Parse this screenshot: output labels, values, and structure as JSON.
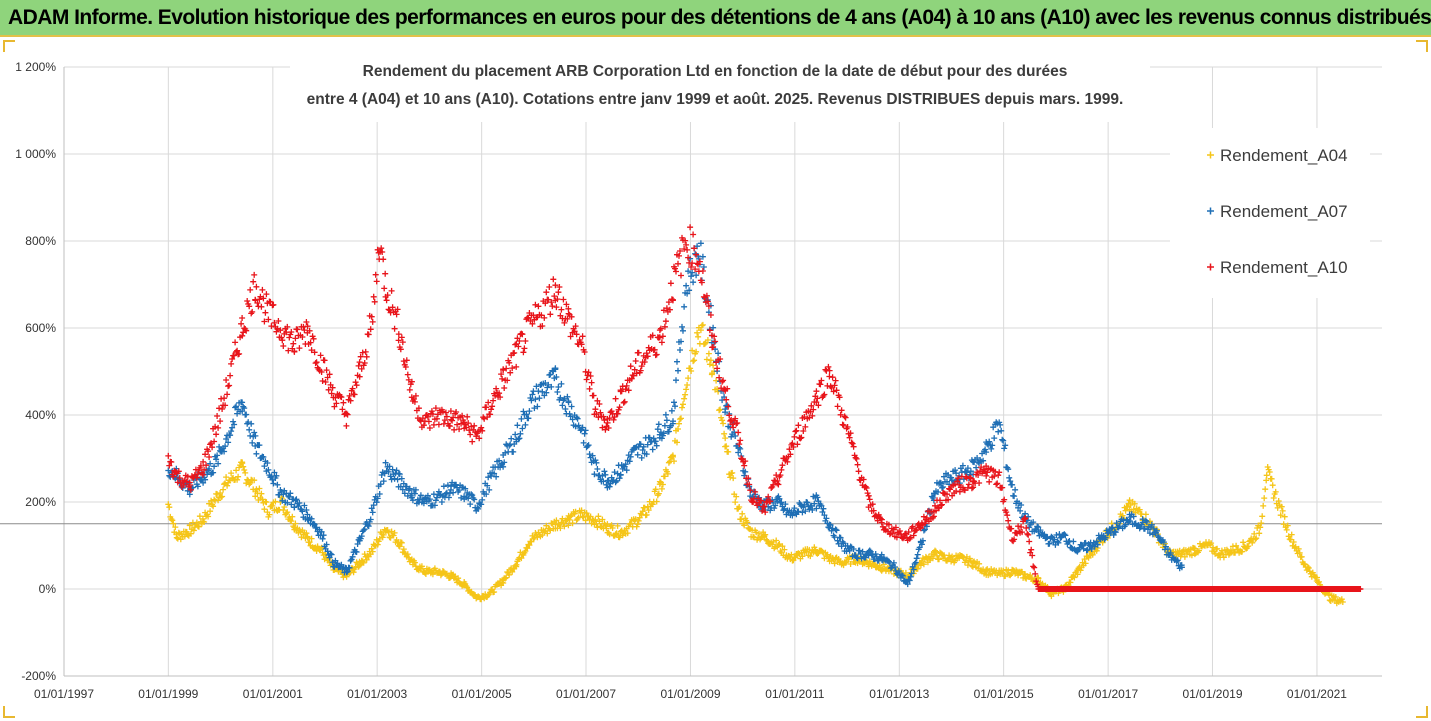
{
  "banner": {
    "title": "ADAM Informe. Evolution historique des performances en euros pour des détentions de 4 ans (A04) à 10 ans (A10) avec les revenus connus distribués"
  },
  "colors": {
    "banner_bg": "#8fd47c",
    "a04": "#f5c518",
    "a07": "#1f6fb5",
    "a10": "#e8151b",
    "grid": "#d9d9d9"
  },
  "chart_data": {
    "type": "scatter",
    "title_lines": [
      "Rendement du placement ARB Corporation Ltd en fonction de la date de début pour des durées",
      "entre 4 (A04) et 10 ans (A10). Cotations entre janv 1999 et août. 2025. Revenus DISTRIBUES depuis mars. 1999."
    ],
    "xlabel": "",
    "ylabel": "",
    "x_axis": {
      "type": "date",
      "range": [
        "1997-01-01",
        "2022-04-01"
      ],
      "tick_labels": [
        "01/01/1997",
        "01/01/1999",
        "01/01/2001",
        "01/01/2003",
        "01/01/2005",
        "01/01/2007",
        "01/01/2009",
        "01/01/2011",
        "01/01/2013",
        "01/01/2015",
        "01/01/2017",
        "01/01/2019",
        "01/01/2021"
      ],
      "tick_dates": [
        "1997-01-01",
        "1999-01-01",
        "2001-01-01",
        "2003-01-01",
        "2005-01-01",
        "2007-01-01",
        "2009-01-01",
        "2011-01-01",
        "2013-01-01",
        "2015-01-01",
        "2017-01-01",
        "2019-01-01",
        "2021-01-01"
      ]
    },
    "y_axis": {
      "unit": "%",
      "range": [
        -200,
        1200
      ],
      "tick_values": [
        -200,
        0,
        200,
        400,
        600,
        800,
        1000,
        1200
      ],
      "tick_labels": [
        "-200%",
        "0%",
        "200%",
        "400%",
        "600%",
        "800%",
        "1 000%",
        "1 200%"
      ]
    },
    "grid": true,
    "legend_position": "top-right",
    "marker": "+",
    "series": [
      {
        "name": "Rendement_A04",
        "color": "#f5c518",
        "points": [
          [
            "1999-01-01",
            195
          ],
          [
            "1999-03-01",
            120
          ],
          [
            "1999-06-01",
            135
          ],
          [
            "1999-09-01",
            160
          ],
          [
            "1999-12-01",
            210
          ],
          [
            "2000-03-01",
            250
          ],
          [
            "2000-06-01",
            275
          ],
          [
            "2000-09-01",
            230
          ],
          [
            "2000-12-01",
            180
          ],
          [
            "2001-03-01",
            200
          ],
          [
            "2001-06-01",
            150
          ],
          [
            "2001-09-01",
            115
          ],
          [
            "2001-12-01",
            90
          ],
          [
            "2002-03-01",
            45
          ],
          [
            "2002-06-01",
            30
          ],
          [
            "2002-09-01",
            60
          ],
          [
            "2002-12-01",
            90
          ],
          [
            "2003-03-01",
            140
          ],
          [
            "2003-06-01",
            110
          ],
          [
            "2003-09-01",
            60
          ],
          [
            "2003-12-01",
            40
          ],
          [
            "2004-03-01",
            40
          ],
          [
            "2004-06-01",
            30
          ],
          [
            "2004-09-01",
            10
          ],
          [
            "2004-12-01",
            -20
          ],
          [
            "2005-03-01",
            -10
          ],
          [
            "2005-06-01",
            20
          ],
          [
            "2005-09-01",
            60
          ],
          [
            "2005-12-01",
            110
          ],
          [
            "2006-03-01",
            130
          ],
          [
            "2006-06-01",
            150
          ],
          [
            "2006-09-01",
            160
          ],
          [
            "2006-12-01",
            170
          ],
          [
            "2007-03-01",
            160
          ],
          [
            "2007-06-01",
            140
          ],
          [
            "2007-09-01",
            130
          ],
          [
            "2007-12-01",
            150
          ],
          [
            "2008-03-01",
            180
          ],
          [
            "2008-06-01",
            230
          ],
          [
            "2008-09-01",
            300
          ],
          [
            "2008-12-01",
            480
          ],
          [
            "2009-03-01",
            600
          ],
          [
            "2009-06-01",
            520
          ],
          [
            "2009-09-01",
            330
          ],
          [
            "2009-12-01",
            180
          ],
          [
            "2010-03-01",
            130
          ],
          [
            "2010-06-01",
            120
          ],
          [
            "2010-09-01",
            100
          ],
          [
            "2010-12-01",
            70
          ],
          [
            "2011-03-01",
            80
          ],
          [
            "2011-06-01",
            90
          ],
          [
            "2011-09-01",
            70
          ],
          [
            "2011-12-01",
            60
          ],
          [
            "2012-03-01",
            70
          ],
          [
            "2012-06-01",
            60
          ],
          [
            "2012-09-01",
            50
          ],
          [
            "2012-12-01",
            40
          ],
          [
            "2013-03-01",
            30
          ],
          [
            "2013-06-01",
            60
          ],
          [
            "2013-09-01",
            80
          ],
          [
            "2013-12-01",
            70
          ],
          [
            "2014-03-01",
            70
          ],
          [
            "2014-06-01",
            60
          ],
          [
            "2014-09-01",
            40
          ],
          [
            "2014-12-01",
            35
          ],
          [
            "2015-03-01",
            40
          ],
          [
            "2015-06-01",
            30
          ],
          [
            "2015-09-01",
            20
          ],
          [
            "2015-12-01",
            -10
          ],
          [
            "2016-03-01",
            0
          ],
          [
            "2016-06-01",
            40
          ],
          [
            "2016-09-01",
            80
          ],
          [
            "2016-12-01",
            120
          ],
          [
            "2017-03-01",
            150
          ],
          [
            "2017-06-01",
            190
          ],
          [
            "2017-09-01",
            170
          ],
          [
            "2017-12-01",
            130
          ],
          [
            "2018-03-01",
            80
          ],
          [
            "2018-06-01",
            80
          ],
          [
            "2018-09-01",
            90
          ],
          [
            "2018-12-01",
            100
          ],
          [
            "2019-03-01",
            80
          ],
          [
            "2019-06-01",
            90
          ],
          [
            "2019-09-01",
            100
          ],
          [
            "2019-12-01",
            140
          ],
          [
            "2020-01-15",
            270
          ],
          [
            "2020-04-01",
            200
          ],
          [
            "2020-07-01",
            120
          ],
          [
            "2020-10-01",
            60
          ],
          [
            "2021-01-01",
            20
          ],
          [
            "2021-04-01",
            -20
          ],
          [
            "2021-07-01",
            -30
          ]
        ]
      },
      {
        "name": "Rendement_A07",
        "color": "#1f6fb5",
        "points": [
          [
            "1999-01-01",
            280
          ],
          [
            "1999-03-01",
            260
          ],
          [
            "1999-06-01",
            230
          ],
          [
            "1999-09-01",
            260
          ],
          [
            "1999-12-01",
            290
          ],
          [
            "2000-03-01",
            360
          ],
          [
            "2000-06-01",
            430
          ],
          [
            "2000-09-01",
            330
          ],
          [
            "2000-12-01",
            280
          ],
          [
            "2001-03-01",
            220
          ],
          [
            "2001-06-01",
            200
          ],
          [
            "2001-09-01",
            170
          ],
          [
            "2001-12-01",
            130
          ],
          [
            "2002-03-01",
            60
          ],
          [
            "2002-06-01",
            40
          ],
          [
            "2002-09-01",
            110
          ],
          [
            "2002-12-01",
            180
          ],
          [
            "2003-03-01",
            280
          ],
          [
            "2003-06-01",
            250
          ],
          [
            "2003-09-01",
            220
          ],
          [
            "2003-12-01",
            200
          ],
          [
            "2004-03-01",
            210
          ],
          [
            "2004-06-01",
            230
          ],
          [
            "2004-09-01",
            220
          ],
          [
            "2004-12-01",
            190
          ],
          [
            "2005-03-01",
            250
          ],
          [
            "2005-06-01",
            300
          ],
          [
            "2005-09-01",
            350
          ],
          [
            "2005-12-01",
            420
          ],
          [
            "2006-03-01",
            460
          ],
          [
            "2006-06-01",
            480
          ],
          [
            "2006-09-01",
            420
          ],
          [
            "2006-12-01",
            370
          ],
          [
            "2007-03-01",
            280
          ],
          [
            "2007-06-01",
            250
          ],
          [
            "2007-09-01",
            270
          ],
          [
            "2007-12-01",
            310
          ],
          [
            "2008-03-01",
            330
          ],
          [
            "2008-06-01",
            360
          ],
          [
            "2008-09-01",
            400
          ],
          [
            "2008-12-01",
            700
          ],
          [
            "2009-03-01",
            780
          ],
          [
            "2009-06-01",
            600
          ],
          [
            "2009-09-01",
            420
          ],
          [
            "2009-12-01",
            320
          ],
          [
            "2010-03-01",
            220
          ],
          [
            "2010-06-01",
            190
          ],
          [
            "2010-09-01",
            200
          ],
          [
            "2010-12-01",
            170
          ],
          [
            "2011-03-01",
            190
          ],
          [
            "2011-06-01",
            200
          ],
          [
            "2011-09-01",
            150
          ],
          [
            "2011-12-01",
            100
          ],
          [
            "2012-03-01",
            80
          ],
          [
            "2012-06-01",
            80
          ],
          [
            "2012-09-01",
            70
          ],
          [
            "2012-12-01",
            50
          ],
          [
            "2013-03-01",
            10
          ],
          [
            "2013-06-01",
            100
          ],
          [
            "2013-09-01",
            220
          ],
          [
            "2013-12-01",
            250
          ],
          [
            "2014-03-01",
            260
          ],
          [
            "2014-06-01",
            280
          ],
          [
            "2014-09-01",
            320
          ],
          [
            "2014-12-01",
            380
          ],
          [
            "2015-03-01",
            230
          ],
          [
            "2015-06-01",
            160
          ],
          [
            "2015-09-01",
            130
          ],
          [
            "2015-12-01",
            110
          ],
          [
            "2016-03-01",
            120
          ],
          [
            "2016-06-01",
            90
          ],
          [
            "2016-09-01",
            100
          ],
          [
            "2016-12-01",
            120
          ],
          [
            "2017-03-01",
            140
          ],
          [
            "2017-06-01",
            160
          ],
          [
            "2017-09-01",
            150
          ],
          [
            "2017-12-01",
            130
          ],
          [
            "2018-03-01",
            80
          ],
          [
            "2018-06-01",
            50
          ]
        ]
      },
      {
        "name": "Rendement_A10",
        "color": "#e8151b",
        "points": [
          [
            "1999-01-01",
            300
          ],
          [
            "1999-03-01",
            260
          ],
          [
            "1999-06-01",
            240
          ],
          [
            "1999-09-01",
            280
          ],
          [
            "1999-12-01",
            370
          ],
          [
            "2000-03-01",
            480
          ],
          [
            "2000-06-01",
            600
          ],
          [
            "2000-09-01",
            700
          ],
          [
            "2000-12-01",
            630
          ],
          [
            "2001-03-01",
            600
          ],
          [
            "2001-06-01",
            560
          ],
          [
            "2001-09-01",
            600
          ],
          [
            "2001-12-01",
            520
          ],
          [
            "2002-03-01",
            450
          ],
          [
            "2002-06-01",
            400
          ],
          [
            "2002-09-01",
            500
          ],
          [
            "2002-12-01",
            620
          ],
          [
            "2003-01-15",
            800
          ],
          [
            "2003-03-01",
            700
          ],
          [
            "2003-06-01",
            600
          ],
          [
            "2003-09-01",
            450
          ],
          [
            "2003-12-01",
            380
          ],
          [
            "2004-03-01",
            400
          ],
          [
            "2004-06-01",
            390
          ],
          [
            "2004-09-01",
            380
          ],
          [
            "2004-12-01",
            350
          ],
          [
            "2005-03-01",
            420
          ],
          [
            "2005-06-01",
            480
          ],
          [
            "2005-09-01",
            540
          ],
          [
            "2005-12-01",
            600
          ],
          [
            "2006-03-01",
            640
          ],
          [
            "2006-06-01",
            690
          ],
          [
            "2006-09-01",
            620
          ],
          [
            "2006-12-01",
            560
          ],
          [
            "2007-03-01",
            420
          ],
          [
            "2007-06-01",
            380
          ],
          [
            "2007-09-01",
            440
          ],
          [
            "2007-12-01",
            500
          ],
          [
            "2008-03-01",
            540
          ],
          [
            "2008-06-01",
            580
          ],
          [
            "2008-09-01",
            700
          ],
          [
            "2008-12-01",
            800
          ],
          [
            "2009-03-01",
            760
          ],
          [
            "2009-06-01",
            580
          ],
          [
            "2009-09-01",
            450
          ],
          [
            "2009-12-01",
            350
          ],
          [
            "2010-03-01",
            220
          ],
          [
            "2010-06-01",
            180
          ],
          [
            "2010-09-01",
            250
          ],
          [
            "2010-12-01",
            320
          ],
          [
            "2011-03-01",
            380
          ],
          [
            "2011-06-01",
            440
          ],
          [
            "2011-09-01",
            500
          ],
          [
            "2011-12-01",
            400
          ],
          [
            "2012-03-01",
            300
          ],
          [
            "2012-06-01",
            200
          ],
          [
            "2012-09-01",
            150
          ],
          [
            "2012-12-01",
            130
          ],
          [
            "2013-03-01",
            120
          ],
          [
            "2013-06-01",
            150
          ],
          [
            "2013-09-01",
            180
          ],
          [
            "2013-12-01",
            220
          ],
          [
            "2014-03-01",
            240
          ],
          [
            "2014-06-01",
            250
          ],
          [
            "2014-09-01",
            270
          ],
          [
            "2014-12-01",
            250
          ],
          [
            "2015-03-01",
            120
          ],
          [
            "2015-06-01",
            150
          ],
          [
            "2015-09-01",
            0
          ],
          [
            "2016-06-01",
            0
          ],
          [
            "2017-06-01",
            0
          ],
          [
            "2018-06-01",
            0
          ],
          [
            "2019-06-01",
            0
          ],
          [
            "2020-06-01",
            0
          ],
          [
            "2021-06-01",
            0
          ],
          [
            "2021-11-01",
            0
          ]
        ]
      }
    ]
  }
}
